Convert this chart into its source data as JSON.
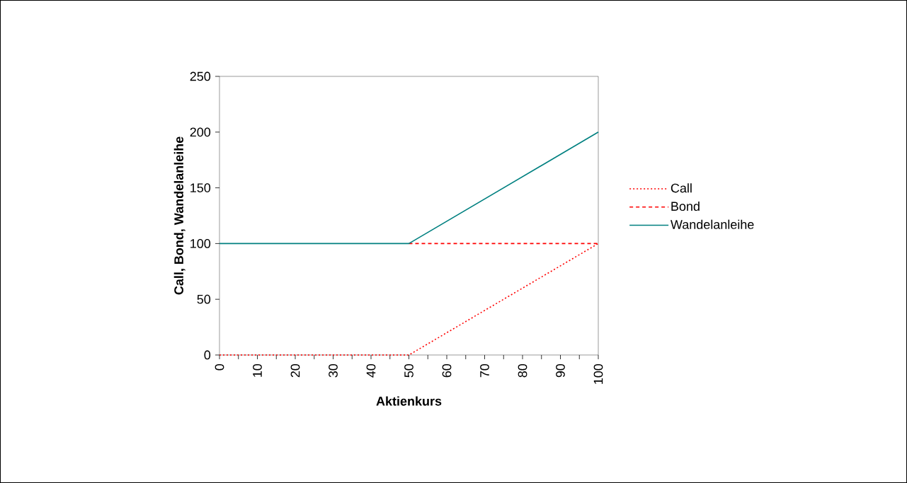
{
  "chart_data": {
    "type": "line",
    "xlabel": "Aktienkurs",
    "ylabel": "Call, Bond, Wandelanleihe",
    "xlim": [
      0,
      100
    ],
    "ylim": [
      0,
      250
    ],
    "xticks": [
      0,
      {
        "value": 5,
        "label": null
      },
      10,
      {
        "value": 15,
        "label": null
      },
      20,
      {
        "value": 25,
        "label": null
      },
      30,
      {
        "value": 35,
        "label": null
      },
      40,
      {
        "value": 45,
        "label": null
      },
      50,
      {
        "value": 55,
        "label": null
      },
      60,
      {
        "value": 65,
        "label": null
      },
      70,
      {
        "value": 75,
        "label": null
      },
      80,
      {
        "value": 85,
        "label": null
      },
      90,
      {
        "value": 95,
        "label": null
      },
      100
    ],
    "yticks": [
      0,
      50,
      100,
      150,
      200,
      250
    ],
    "grid": false,
    "legend": "right",
    "marker": "none",
    "series": [
      {
        "name": "Call",
        "color": "#ff0000",
        "line_style": "dotted",
        "x": [
          0,
          50,
          100
        ],
        "values": [
          0,
          0,
          100
        ]
      },
      {
        "name": "Bond",
        "color": "#ff0000",
        "line_style": "dashed",
        "x": [
          50,
          100
        ],
        "values": [
          100,
          100
        ]
      },
      {
        "name": "Wandelanleihe",
        "color": "#008080",
        "line_style": "solid",
        "x": [
          0,
          50,
          100
        ],
        "values": [
          100,
          100,
          200
        ]
      }
    ]
  }
}
